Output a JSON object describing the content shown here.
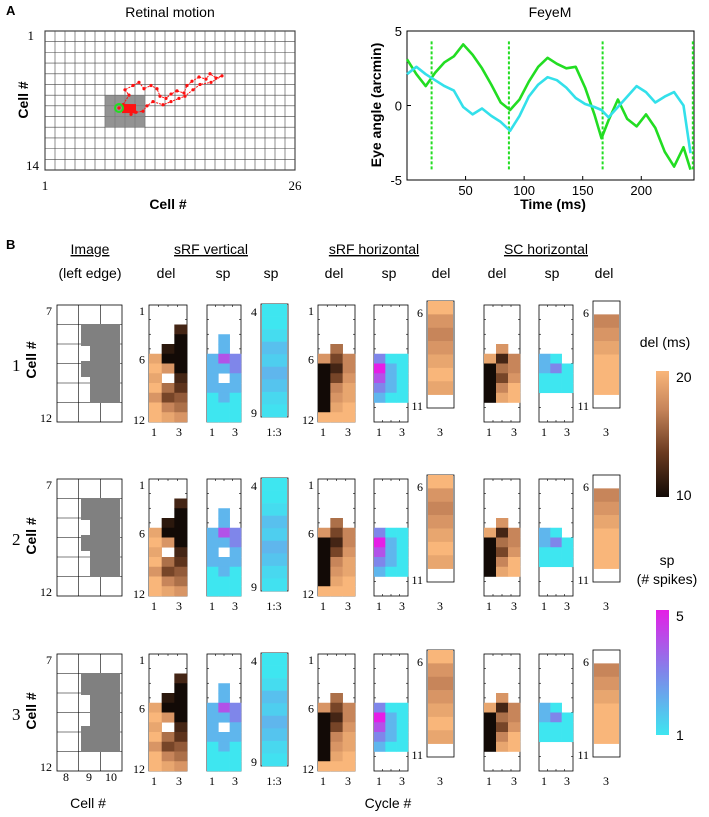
{
  "panel_a": {
    "label": "A"
  },
  "panel_b": {
    "label": "B"
  },
  "retinal": {
    "title": "Retinal motion",
    "xlabel": "Cell #",
    "ylabel": "Cell #",
    "x_min": "1",
    "x_max": "26",
    "y_min": "1",
    "y_max": "14"
  },
  "feyem": {
    "title": "FeyeM",
    "xlabel": "Time (ms)",
    "ylabel": "Eye angle (arcmin)"
  },
  "headers": {
    "image": "Image",
    "image_sub": "(left edge)",
    "srf_v": "sRF vertical",
    "srf_h": "sRF horizontal",
    "sc_h": "SC horizontal",
    "del": "del",
    "sp": "sp"
  },
  "row_labels": [
    "1",
    "2",
    "3"
  ],
  "cell_label": "Cell #",
  "ticks": {
    "img_top": "7",
    "img_bot": "12",
    "img_x": [
      "8",
      "9",
      "10"
    ],
    "v_top": "1",
    "v_mid": "6",
    "v_bot": "12",
    "v_x1": "1",
    "v_x3": "3",
    "sp_top": "4",
    "sp_bot": "9",
    "sp_x": "1:3",
    "h_top": "6",
    "h_bot": "11",
    "h_x": "3"
  },
  "bottom_labels": {
    "cell": "Cell #",
    "cycle": "Cycle  #"
  },
  "colorbars": {
    "del_title": "del (ms)",
    "del_max": "20",
    "del_min": "10",
    "sp_title_1": "sp",
    "sp_title_2": "(# spikes)",
    "sp_max": "5",
    "sp_min": "1"
  },
  "colors": {
    "del_low": "#140c08",
    "del_high": "#f9b67a",
    "sp_low": "#3ee6f0",
    "sp_high": "#e51ee6",
    "trace_green": "#22dd22",
    "trace_cyan": "#33e0ea",
    "trail_red": "#ff1111",
    "gray": "#808080"
  },
  "chart_data": [
    {
      "type": "line",
      "title": "FeyeM",
      "xlabel": "Time (ms)",
      "ylabel": "Eye angle (arcmin)",
      "xlim": [
        0,
        245
      ],
      "ylim": [
        -5,
        5
      ],
      "xticks": [
        50,
        100,
        150,
        200
      ],
      "yticks": [
        -5,
        0,
        5
      ],
      "markers_x": [
        21,
        87,
        167,
        244
      ],
      "series": [
        {
          "name": "green trace",
          "color": "#22dd22",
          "x": [
            0,
            8,
            16,
            24,
            32,
            40,
            48,
            56,
            64,
            72,
            80,
            88,
            96,
            104,
            112,
            120,
            128,
            136,
            144,
            152,
            160,
            166,
            172,
            180,
            188,
            196,
            204,
            212,
            220,
            228,
            236,
            242
          ],
          "y": [
            3.1,
            2.1,
            1.3,
            2.2,
            2.9,
            3.3,
            4.1,
            3.4,
            2.5,
            1.4,
            0.2,
            -0.3,
            0.4,
            1.6,
            2.6,
            3.2,
            2.8,
            2.5,
            2.6,
            1.2,
            -0.6,
            -2.2,
            -1.0,
            0.4,
            -0.9,
            -1.4,
            -0.6,
            -1.5,
            -3.1,
            -4.1,
            -2.8,
            -4.3
          ]
        },
        {
          "name": "cyan trace",
          "color": "#33e0ea",
          "x": [
            0,
            8,
            16,
            24,
            32,
            40,
            48,
            56,
            64,
            72,
            80,
            88,
            96,
            104,
            112,
            120,
            128,
            136,
            144,
            152,
            160,
            166,
            172,
            180,
            188,
            196,
            204,
            212,
            220,
            228,
            236,
            242
          ],
          "y": [
            2.1,
            2.6,
            2.1,
            1.7,
            1.3,
            1.0,
            -0.1,
            -0.6,
            -0.2,
            -0.7,
            -1.1,
            -1.7,
            -0.7,
            0.6,
            1.4,
            1.9,
            1.7,
            1.2,
            0.5,
            0.1,
            -0.1,
            -0.3,
            -0.8,
            -0.1,
            0.6,
            1.3,
            0.9,
            0.2,
            0.6,
            0.9,
            0.0,
            -3.2
          ]
        }
      ]
    },
    {
      "type": "scatter",
      "title": "Retinal motion",
      "xlabel": "Cell #",
      "ylabel": "Cell #",
      "xlim": [
        1,
        26
      ],
      "ylim": [
        1,
        14
      ],
      "trail": [
        [
          8.4,
          8.2
        ],
        [
          8.8,
          7.9
        ],
        [
          9.4,
          7.0
        ],
        [
          9.0,
          6.5
        ],
        [
          9.8,
          6.1
        ],
        [
          10.4,
          5.8
        ],
        [
          10.9,
          6.4
        ],
        [
          11.6,
          6.1
        ],
        [
          12.2,
          6.4
        ],
        [
          12.5,
          7.1
        ],
        [
          13.1,
          7.3
        ],
        [
          13.6,
          6.9
        ],
        [
          14.2,
          6.6
        ],
        [
          14.9,
          6.8
        ],
        [
          15.2,
          6.1
        ],
        [
          15.7,
          5.7
        ],
        [
          16.4,
          5.3
        ],
        [
          17.1,
          5.5
        ],
        [
          17.5,
          5.0
        ],
        [
          18.1,
          5.4
        ],
        [
          18.7,
          5.2
        ],
        [
          17.6,
          5.8
        ],
        [
          16.5,
          6.0
        ],
        [
          15.8,
          6.5
        ],
        [
          15.0,
          7.1
        ],
        [
          14.4,
          7.3
        ],
        [
          13.6,
          7.6
        ],
        [
          12.8,
          7.9
        ],
        [
          11.8,
          7.6
        ],
        [
          11.2,
          8.0
        ],
        [
          10.8,
          8.5
        ],
        [
          10.1,
          8.6
        ],
        [
          9.6,
          8.8
        ]
      ],
      "start_cell": [
        8.4,
        8.2
      ],
      "image_rect": {
        "x_from": 7,
        "x_to": 11,
        "y_from": 7,
        "y_to": 10
      }
    },
    {
      "type": "heatmap",
      "name": "sRF vertical del",
      "rows": [
        1,
        12
      ],
      "cycles": [
        1,
        3
      ],
      "row_starts": [
        [
          5,
          3,
          2
        ],
        [
          5,
          3,
          2
        ],
        [
          5,
          3,
          2
        ]
      ],
      "rows_1": [
        [
          1,
          18,
          19,
          2,
          2,
          15
        ],
        [
          2,
          20,
          20,
          17,
          2,
          6
        ],
        [
          3,
          15,
          16,
          12,
          4,
          10
        ],
        [
          4,
          19,
          20,
          14,
          7,
          12
        ],
        [
          5,
          20,
          19,
          16,
          10,
          14
        ],
        [
          6,
          19,
          20,
          19,
          15,
          16
        ],
        [
          7,
          20,
          19,
          18,
          18,
          18
        ],
        [
          8,
          20,
          20,
          20,
          20,
          20
        ]
      ]
    },
    {
      "type": "heatmap",
      "name": "spike counts",
      "min": 1,
      "max": 5
    },
    {
      "type": "colorbar",
      "name": "del (ms)",
      "min": 10,
      "max": 20
    },
    {
      "type": "colorbar",
      "name": "sp (# spikes)",
      "min": 1,
      "max": 5
    }
  ]
}
